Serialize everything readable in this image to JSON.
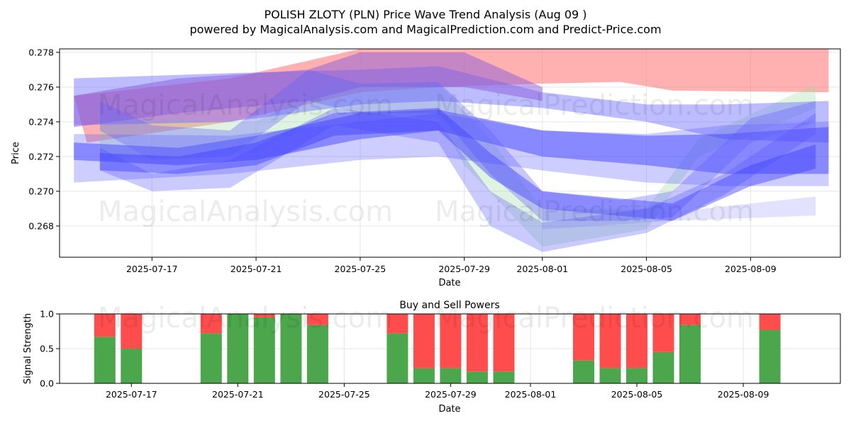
{
  "header": {
    "title": "POLISH ZLOTY (PLN) Price Wave Trend Analysis (Aug 09 )",
    "subtitle": "powered by MagicalAnalysis.com and MagicalPrediction.com and Predict-Price.com"
  },
  "watermarks": [
    "MagicalAnalysis.com",
    "MagicalPrediction.com"
  ],
  "chart_data": [
    {
      "type": "area",
      "title": "",
      "xlabel": "Date",
      "ylabel": "Price",
      "ylim": [
        0.2662,
        0.2782
      ],
      "x_range": [
        "2025-07-14",
        "2025-08-12"
      ],
      "x_ticks": [
        "2025-07-17",
        "2025-07-21",
        "2025-07-25",
        "2025-07-29",
        "2025-08-01",
        "2025-08-05",
        "2025-08-09"
      ],
      "y_ticks": [
        0.268,
        0.27,
        0.272,
        0.274,
        0.276,
        0.278
      ],
      "y_tick_labels": [
        "0.268",
        "0.270",
        "0.272",
        "0.274",
        "0.276",
        "0.278"
      ],
      "grid": true,
      "series": [
        {
          "color": "#ff7070",
          "opacity": 0.55,
          "upper": [
            [
              "2025-07-14",
              0.2755
            ],
            [
              "2025-07-20",
              0.2765
            ],
            [
              "2025-07-25",
              0.2782
            ],
            [
              "2025-07-28",
              0.2782
            ],
            [
              "2025-08-01",
              0.2782
            ],
            [
              "2025-08-12",
              0.2782
            ]
          ],
          "lower": [
            [
              "2025-07-14.5",
              0.2728
            ],
            [
              "2025-07-20",
              0.274
            ],
            [
              "2025-07-25",
              0.2757
            ],
            [
              "2025-07-28",
              0.276
            ],
            [
              "2025-08-01",
              0.2762
            ],
            [
              "2025-08-04",
              0.2763
            ],
            [
              "2025-08-06",
              0.2758
            ],
            [
              "2025-08-12",
              0.2757
            ]
          ]
        },
        {
          "color": "#a6d9a6",
          "opacity": 0.35,
          "upper": [
            [
              "2025-07-15",
              0.2742
            ],
            [
              "2025-07-21",
              0.274
            ],
            [
              "2025-07-24",
              0.2763
            ],
            [
              "2025-07-28",
              0.2762
            ],
            [
              "2025-07-30",
              0.273
            ],
            [
              "2025-08-01",
              0.269
            ],
            [
              "2025-08-05",
              0.269
            ],
            [
              "2025-08-07",
              0.273
            ],
            [
              "2025-08-11.5",
              0.2762
            ]
          ],
          "lower": [
            [
              "2025-07-15",
              0.2718
            ],
            [
              "2025-07-21",
              0.2722
            ],
            [
              "2025-07-24",
              0.2745
            ],
            [
              "2025-07-28",
              0.2742
            ],
            [
              "2025-07-29",
              0.2715
            ],
            [
              "2025-08-01",
              0.2668
            ],
            [
              "2025-08-05",
              0.2678
            ],
            [
              "2025-08-07",
              0.272
            ],
            [
              "2025-08-11.5",
              0.2748
            ]
          ]
        },
        {
          "color": "#6a6aff",
          "opacity": 0.45,
          "upper": [
            [
              "2025-07-14",
              0.2765
            ],
            [
              "2025-07-20",
              0.2768
            ],
            [
              "2025-07-25",
              0.277
            ],
            [
              "2025-07-28",
              0.2772
            ],
            [
              "2025-08-01",
              0.2757
            ],
            [
              "2025-08-05",
              0.275
            ],
            [
              "2025-08-08",
              0.275
            ],
            [
              "2025-08-12",
              0.2752
            ]
          ],
          "lower": [
            [
              "2025-07-14",
              0.2738
            ],
            [
              "2025-07-20",
              0.274
            ],
            [
              "2025-07-25",
              0.275
            ],
            [
              "2025-07-28",
              0.2752
            ],
            [
              "2025-08-01",
              0.2748
            ],
            [
              "2025-08-05",
              0.274
            ],
            [
              "2025-08-08",
              0.273
            ],
            [
              "2025-08-12",
              0.2728
            ]
          ]
        },
        {
          "color": "#8a5cd8",
          "opacity": 0.5,
          "upper": [
            [
              "2025-07-14",
              0.2755
            ],
            [
              "2025-07-18",
              0.2765
            ],
            [
              "2025-07-23",
              0.277
            ],
            [
              "2025-07-25",
              0.278
            ],
            [
              "2025-07-29",
              0.278
            ],
            [
              "2025-08-01",
              0.276
            ]
          ],
          "lower": [
            [
              "2025-07-14",
              0.2737
            ],
            [
              "2025-07-18",
              0.2745
            ],
            [
              "2025-07-23",
              0.2752
            ],
            [
              "2025-07-25",
              0.276
            ],
            [
              "2025-07-29",
              0.276
            ],
            [
              "2025-08-01",
              0.2752
            ]
          ]
        },
        {
          "color": "#5a5aff",
          "opacity": 0.3,
          "upper": [
            [
              "2025-07-14",
              0.2733
            ],
            [
              "2025-07-20",
              0.2732
            ],
            [
              "2025-07-25",
              0.274
            ],
            [
              "2025-07-28",
              0.2745
            ],
            [
              "2025-08-01",
              0.2735
            ],
            [
              "2025-08-05",
              0.2733
            ],
            [
              "2025-08-08",
              0.2738
            ],
            [
              "2025-08-12",
              0.274
            ]
          ],
          "lower": [
            [
              "2025-07-14",
              0.2705
            ],
            [
              "2025-07-20",
              0.271
            ],
            [
              "2025-07-25",
              0.2718
            ],
            [
              "2025-07-28",
              0.272
            ],
            [
              "2025-08-01",
              0.2712
            ],
            [
              "2025-08-05",
              0.2705
            ],
            [
              "2025-08-08",
              0.2703
            ],
            [
              "2025-08-12",
              0.2703
            ]
          ]
        },
        {
          "color": "#4444ff",
          "opacity": 0.5,
          "upper": [
            [
              "2025-07-14",
              0.2728
            ],
            [
              "2025-07-18",
              0.2725
            ],
            [
              "2025-07-21",
              0.2732
            ],
            [
              "2025-07-25",
              0.2745
            ],
            [
              "2025-07-28",
              0.2747
            ],
            [
              "2025-08-01",
              0.2735
            ],
            [
              "2025-08-05",
              0.2732
            ],
            [
              "2025-08-08",
              0.2733
            ],
            [
              "2025-08-12",
              0.2737
            ]
          ],
          "lower": [
            [
              "2025-07-14",
              0.2718
            ],
            [
              "2025-07-18",
              0.2715
            ],
            [
              "2025-07-21",
              0.2718
            ],
            [
              "2025-07-25",
              0.273
            ],
            [
              "2025-07-28",
              0.2735
            ],
            [
              "2025-08-01",
              0.272
            ],
            [
              "2025-08-05",
              0.2715
            ],
            [
              "2025-08-08",
              0.271
            ],
            [
              "2025-08-12",
              0.271
            ]
          ]
        },
        {
          "color": "#6060ff",
          "opacity": 0.35,
          "upper": [
            [
              "2025-07-15",
              0.2752
            ],
            [
              "2025-07-17",
              0.2738
            ],
            [
              "2025-07-20",
              0.2735
            ],
            [
              "2025-07-23",
              0.277
            ],
            [
              "2025-07-25",
              0.2762
            ],
            [
              "2025-07-28",
              0.2763
            ],
            [
              "2025-07-30",
              0.2735
            ],
            [
              "2025-08-01",
              0.27
            ],
            [
              "2025-08-04",
              0.2695
            ],
            [
              "2025-08-06",
              0.27
            ],
            [
              "2025-08-09",
              0.2742
            ],
            [
              "2025-08-11.5",
              0.2752
            ]
          ],
          "lower": [
            [
              "2025-07-15",
              0.2735
            ],
            [
              "2025-07-17",
              0.2718
            ],
            [
              "2025-07-20",
              0.272
            ],
            [
              "2025-07-23",
              0.2752
            ],
            [
              "2025-07-25",
              0.2745
            ],
            [
              "2025-07-28",
              0.2745
            ],
            [
              "2025-07-30",
              0.271
            ],
            [
              "2025-08-01",
              0.2683
            ],
            [
              "2025-08-04",
              0.2683
            ],
            [
              "2025-08-06",
              0.2685
            ],
            [
              "2025-08-09",
              0.2728
            ],
            [
              "2025-08-11.5",
              0.274
            ]
          ]
        },
        {
          "color": "#5050ff",
          "opacity": 0.3,
          "upper": [
            [
              "2025-07-15",
              0.2725
            ],
            [
              "2025-07-17",
              0.271
            ],
            [
              "2025-07-20",
              0.2718
            ],
            [
              "2025-07-24",
              0.2748
            ],
            [
              "2025-07-28",
              0.274
            ],
            [
              "2025-07-30",
              0.27
            ],
            [
              "2025-08-01",
              0.2682
            ],
            [
              "2025-08-05",
              0.269
            ],
            [
              "2025-08-08",
              0.271
            ],
            [
              "2025-08-11.5",
              0.2745
            ]
          ],
          "lower": [
            [
              "2025-07-15",
              0.2712
            ],
            [
              "2025-07-17",
              0.27
            ],
            [
              "2025-07-20",
              0.2702
            ],
            [
              "2025-07-24",
              0.2738
            ],
            [
              "2025-07-28",
              0.2728
            ],
            [
              "2025-07-30",
              0.268
            ],
            [
              "2025-08-01",
              0.2665
            ],
            [
              "2025-08-05",
              0.2676
            ],
            [
              "2025-08-08",
              0.2698
            ],
            [
              "2025-08-11.5",
              0.2733
            ]
          ]
        },
        {
          "color": "#4040ff",
          "opacity": 0.45,
          "upper": [
            [
              "2025-07-15",
              0.2722
            ],
            [
              "2025-07-18",
              0.272
            ],
            [
              "2025-07-21",
              0.2728
            ],
            [
              "2025-07-24",
              0.2745
            ],
            [
              "2025-07-28",
              0.2748
            ],
            [
              "2025-07-30",
              0.2722
            ],
            [
              "2025-08-01",
              0.27
            ],
            [
              "2025-08-06",
              0.2693
            ],
            [
              "2025-08-09",
              0.2715
            ],
            [
              "2025-08-11.5",
              0.2727
            ]
          ],
          "lower": [
            [
              "2025-07-15",
              0.2712
            ],
            [
              "2025-07-18",
              0.271
            ],
            [
              "2025-07-21",
              0.2715
            ],
            [
              "2025-07-24",
              0.2732
            ],
            [
              "2025-07-28",
              0.2735
            ],
            [
              "2025-07-30",
              0.2708
            ],
            [
              "2025-08-01",
              0.269
            ],
            [
              "2025-08-06",
              0.2683
            ],
            [
              "2025-08-09",
              0.2703
            ],
            [
              "2025-08-11.5",
              0.2713
            ]
          ]
        },
        {
          "color": "#7070ff",
          "opacity": 0.2,
          "upper": [
            [
              "2025-08-01",
              0.269
            ],
            [
              "2025-08-06",
              0.2688
            ],
            [
              "2025-08-11.5",
              0.2697
            ]
          ],
          "lower": [
            [
              "2025-08-01",
              0.2678
            ],
            [
              "2025-08-06",
              0.2683
            ],
            [
              "2025-08-11.5",
              0.2686
            ]
          ]
        }
      ]
    },
    {
      "type": "bar",
      "stacked": true,
      "title": "Buy and Sell Powers",
      "xlabel": "Date",
      "ylabel": "Signal Strength",
      "ylim": [
        0,
        1
      ],
      "y_ticks": [
        0,
        0.5,
        1
      ],
      "y_tick_labels": [
        "0.0",
        "0.5",
        "1.0"
      ],
      "x_range": [
        "2025-07-15",
        "2025-08-12"
      ],
      "x_ticks": [
        "2025-07-17",
        "2025-07-21",
        "2025-07-25",
        "2025-07-29",
        "2025-08-01",
        "2025-08-05",
        "2025-08-09"
      ],
      "grid": true,
      "buy_color": "#4ca64c",
      "sell_color": "#ff4d4d",
      "bars": [
        {
          "date": "2025-07-16",
          "buy": 0.67,
          "sell": 0.33
        },
        {
          "date": "2025-07-17",
          "buy": 0.5,
          "sell": 0.5
        },
        {
          "date": "2025-07-20",
          "buy": 0.72,
          "sell": 0.28
        },
        {
          "date": "2025-07-21",
          "buy": 1.0,
          "sell": 0.0
        },
        {
          "date": "2025-07-22",
          "buy": 0.95,
          "sell": 0.05
        },
        {
          "date": "2025-07-23",
          "buy": 1.0,
          "sell": 0.0
        },
        {
          "date": "2025-07-24",
          "buy": 0.84,
          "sell": 0.16
        },
        {
          "date": "2025-07-27",
          "buy": 0.72,
          "sell": 0.28
        },
        {
          "date": "2025-07-28",
          "buy": 0.22,
          "sell": 0.78
        },
        {
          "date": "2025-07-29",
          "buy": 0.22,
          "sell": 0.78
        },
        {
          "date": "2025-07-30",
          "buy": 0.17,
          "sell": 0.83
        },
        {
          "date": "2025-07-31",
          "buy": 0.17,
          "sell": 0.83
        },
        {
          "date": "2025-08-03",
          "buy": 0.33,
          "sell": 0.67
        },
        {
          "date": "2025-08-04",
          "buy": 0.22,
          "sell": 0.78
        },
        {
          "date": "2025-08-05",
          "buy": 0.22,
          "sell": 0.78
        },
        {
          "date": "2025-08-06",
          "buy": 0.45,
          "sell": 0.55
        },
        {
          "date": "2025-08-07",
          "buy": 0.84,
          "sell": 0.16
        },
        {
          "date": "2025-08-10",
          "buy": 0.77,
          "sell": 0.23
        }
      ]
    }
  ]
}
